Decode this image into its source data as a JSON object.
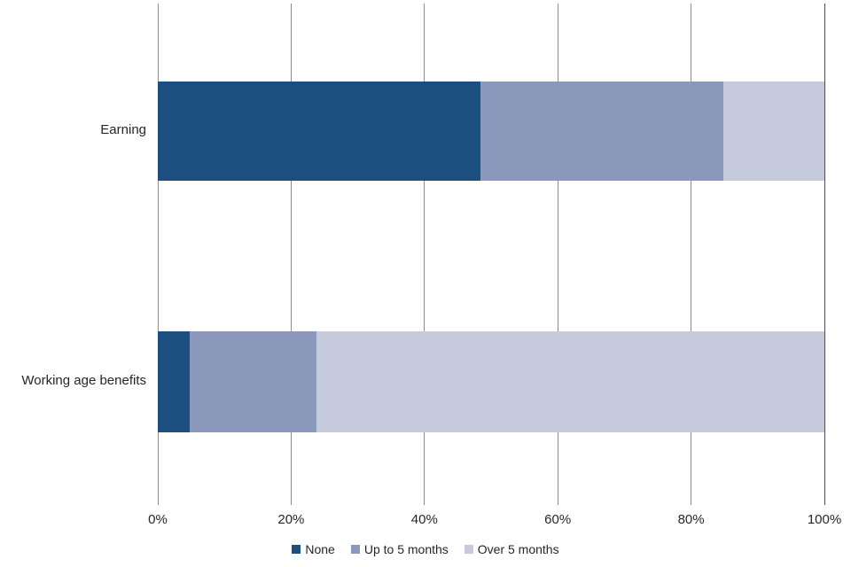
{
  "chart_data": {
    "type": "bar",
    "orientation": "horizontal",
    "stacked": true,
    "title": "",
    "xlabel": "",
    "ylabel": "",
    "categories": [
      "Earning",
      "Working age benefits"
    ],
    "series": [
      {
        "name": "None",
        "color": "#1C4E80",
        "values": [
          48.4,
          4.8
        ]
      },
      {
        "name": "Up to 5 months",
        "color": "#8A99BB",
        "values": [
          36.4,
          19.0
        ]
      },
      {
        "name": "Over 5 months",
        "color": "#C5CBDD",
        "values": [
          15.2,
          76.2
        ]
      }
    ],
    "x_axis": {
      "min": 0,
      "max": 100,
      "tick_labels": [
        "0%",
        "20%",
        "40%",
        "60%",
        "80%",
        "100%"
      ]
    },
    "grid": true,
    "legend_position": "bottom"
  },
  "colors": {
    "background": "#ffffff",
    "gridline": "#8c8c8c",
    "end_gridline": "#4d4d4d",
    "text": "#262626"
  }
}
